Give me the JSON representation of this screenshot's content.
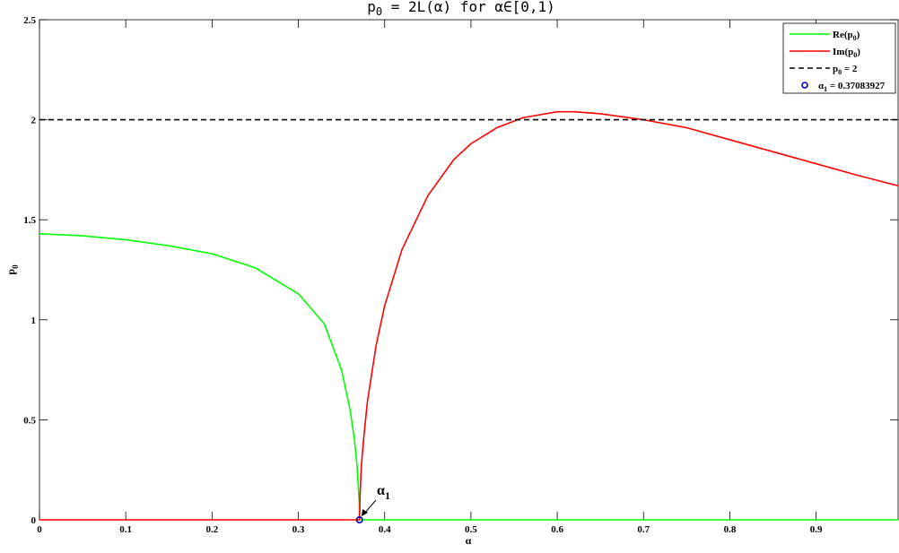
{
  "chart_data": {
    "type": "line",
    "title": "p_0 = 2L(α) for α∈[0,1)",
    "title_parts": {
      "main": "p",
      "sub": "0",
      "rest": " = 2L(α) for α∈[0,1)"
    },
    "xlabel": "α",
    "ylabel": "p",
    "ylabel_sub": "0",
    "xlim": [
      0,
      0.995
    ],
    "ylim": [
      0,
      2.5
    ],
    "xticks": [
      0,
      0.1,
      0.2,
      0.3,
      0.4,
      0.5,
      0.6,
      0.7,
      0.8,
      0.9
    ],
    "xtick_labels": [
      "0",
      "0.1",
      "0.2",
      "0.3",
      "0.4",
      "0.5",
      "0.6",
      "0.7",
      "0.8",
      "0.9"
    ],
    "yticks": [
      0,
      0.5,
      1,
      1.5,
      2,
      2.5
    ],
    "ytick_labels": [
      "0",
      "0.5",
      "1",
      "1.5",
      "2",
      "2.5"
    ],
    "grid": false,
    "legend_position": "top-right",
    "series": [
      {
        "name": "Re(p_0)",
        "label_main": "Re(p",
        "label_sub": "0",
        "label_end": ")",
        "color": "#00ff00",
        "points": [
          [
            0,
            1.43
          ],
          [
            0.05,
            1.42
          ],
          [
            0.1,
            1.4
          ],
          [
            0.15,
            1.37
          ],
          [
            0.2,
            1.33
          ],
          [
            0.25,
            1.26
          ],
          [
            0.3,
            1.13
          ],
          [
            0.33,
            0.98
          ],
          [
            0.35,
            0.75
          ],
          [
            0.36,
            0.55
          ],
          [
            0.365,
            0.4
          ],
          [
            0.368,
            0.27
          ],
          [
            0.3705,
            0.09
          ],
          [
            0.37083927,
            0
          ],
          [
            0.4,
            0
          ],
          [
            0.6,
            0
          ],
          [
            0.8,
            0
          ],
          [
            0.995,
            0
          ]
        ]
      },
      {
        "name": "Im(p_0)",
        "label_main": "Im(p",
        "label_sub": "0",
        "label_end": ")",
        "color": "#ff0000",
        "points": [
          [
            0,
            0
          ],
          [
            0.2,
            0
          ],
          [
            0.37083927,
            0
          ],
          [
            0.3715,
            0.12
          ],
          [
            0.373,
            0.27
          ],
          [
            0.376,
            0.42
          ],
          [
            0.38,
            0.59
          ],
          [
            0.39,
            0.87
          ],
          [
            0.4,
            1.07
          ],
          [
            0.42,
            1.35
          ],
          [
            0.45,
            1.62
          ],
          [
            0.48,
            1.8
          ],
          [
            0.5,
            1.88
          ],
          [
            0.53,
            1.96
          ],
          [
            0.56,
            2.01
          ],
          [
            0.6,
            2.04
          ],
          [
            0.62,
            2.04
          ],
          [
            0.65,
            2.03
          ],
          [
            0.7,
            2.0
          ],
          [
            0.75,
            1.96
          ],
          [
            0.8,
            1.9
          ],
          [
            0.85,
            1.84
          ],
          [
            0.9,
            1.78
          ],
          [
            0.95,
            1.72
          ],
          [
            0.995,
            1.67
          ]
        ]
      },
      {
        "name": "p_0 = 2",
        "label_main": "p",
        "label_sub": "0",
        "label_end": " = 2",
        "color": "#000000",
        "dashed": true,
        "points": [
          [
            0,
            2
          ],
          [
            0.995,
            2
          ]
        ]
      }
    ],
    "marker": {
      "name": "α_1 = 0.37083927",
      "label_main": "α",
      "label_sub": "1",
      "label_end": " = 0.37083927",
      "x": 0.37083927,
      "y": 0,
      "color": "#0000cc"
    },
    "annotation": {
      "text": "α",
      "sub": "1"
    }
  }
}
